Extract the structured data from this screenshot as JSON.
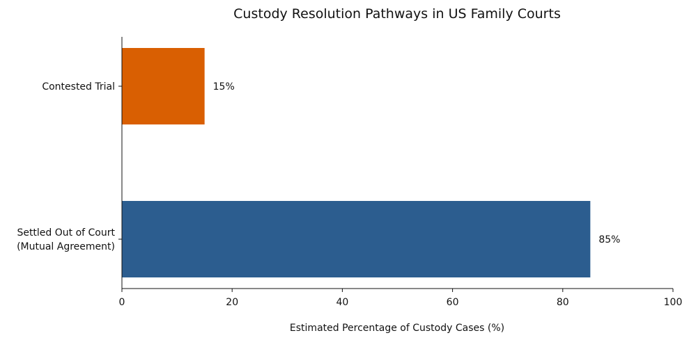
{
  "chart_data": {
    "type": "bar",
    "orientation": "horizontal",
    "title": "Custody Resolution Pathways in US Family Courts",
    "xlabel": "Estimated Percentage of Custody Cases (%)",
    "ylabel": "",
    "xlim": [
      0,
      100
    ],
    "xticks": [
      0,
      20,
      40,
      60,
      80,
      100
    ],
    "categories": [
      "Contested Trial",
      "Settled Out of Court\n(Mutual Agreement)"
    ],
    "values": [
      15,
      85
    ],
    "value_labels": [
      "15%",
      "85%"
    ],
    "colors": [
      "#d95f02",
      "#2c5d8f"
    ],
    "grid": false
  }
}
